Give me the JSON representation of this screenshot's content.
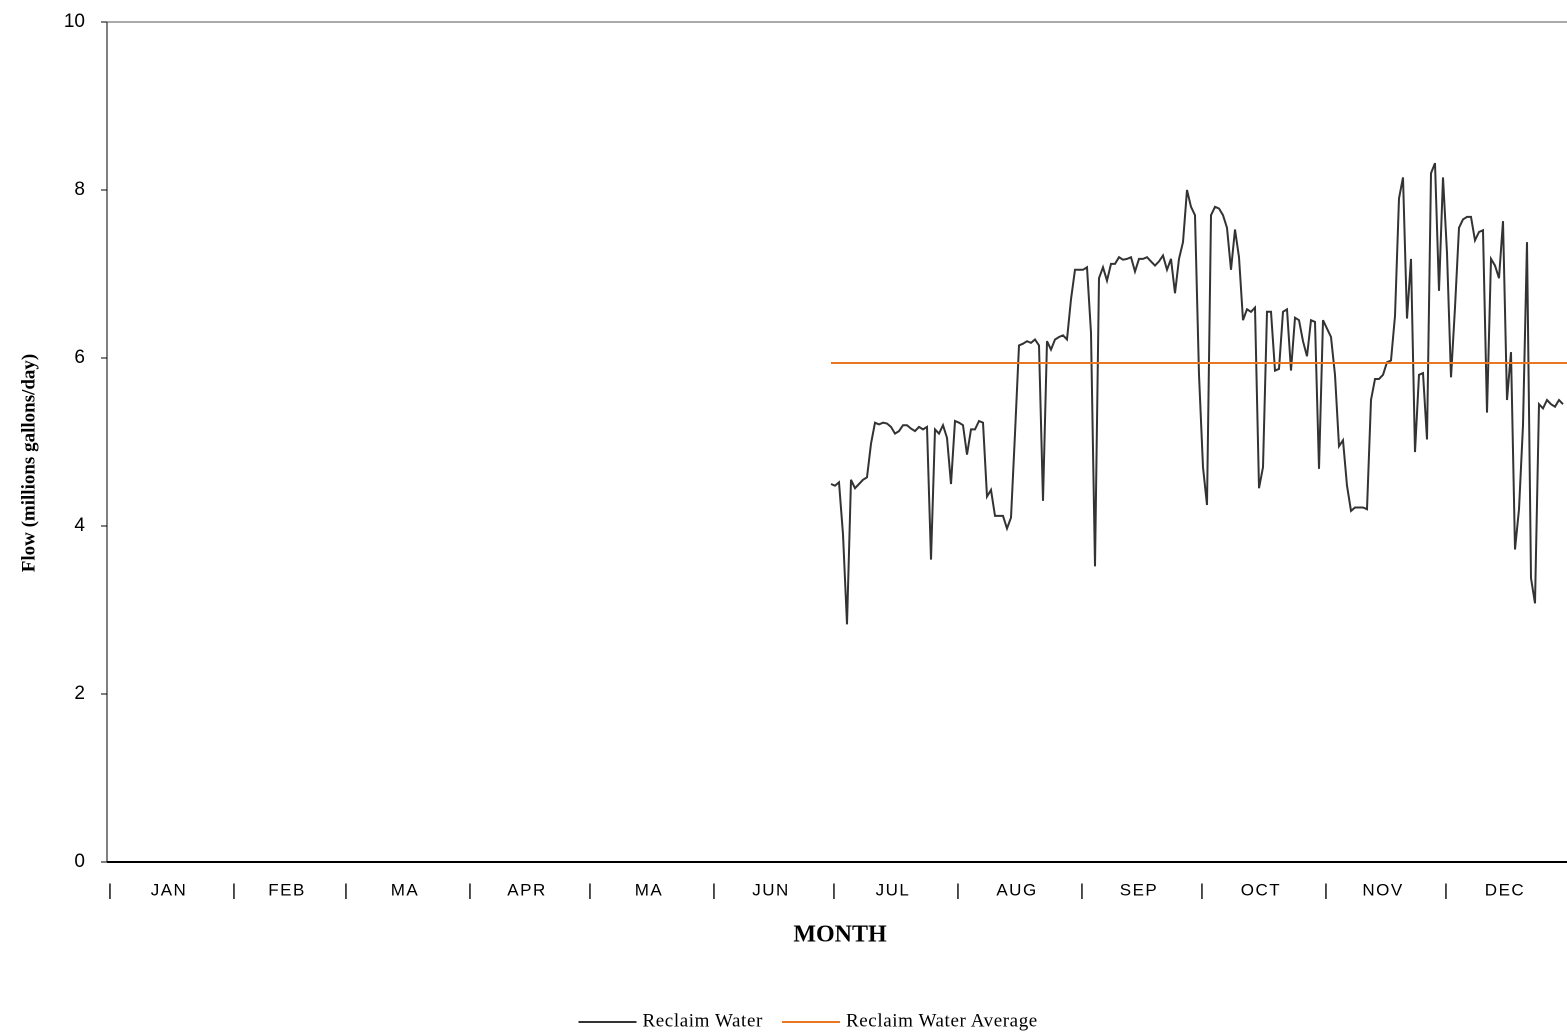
{
  "chart_data": {
    "type": "line",
    "xlabel": "MONTH",
    "ylabel": "Flow (millions gallons/day)",
    "xlim": [
      1,
      366
    ],
    "xticks": [
      {
        "value": 1,
        "label": "|"
      },
      {
        "value": 32,
        "label": "|"
      },
      {
        "value": 60,
        "label": "|"
      },
      {
        "value": 91,
        "label": "|"
      },
      {
        "value": 121,
        "label": "|"
      },
      {
        "value": 152,
        "label": "|"
      },
      {
        "value": 182,
        "label": "|"
      },
      {
        "value": 213,
        "label": "|"
      },
      {
        "value": 244,
        "label": "|"
      },
      {
        "value": 274,
        "label": "|"
      },
      {
        "value": 305,
        "label": "|"
      },
      {
        "value": 335,
        "label": "|"
      }
    ],
    "categories": [
      "JAN",
      "FEB",
      "MA",
      "APR",
      "MA",
      "JUN",
      "JUL",
      "AUG",
      "SEP",
      "OCT",
      "NOV",
      "DEC"
    ],
    "ylim": [
      0,
      10
    ],
    "yticks": [
      0,
      2,
      4,
      6,
      8,
      10
    ],
    "grid": false,
    "legend": "bottom",
    "series": [
      {
        "name": "Reclaim Water",
        "color": "#333333",
        "x": [
          182,
          183,
          184,
          185,
          186,
          187,
          188,
          189,
          190,
          191,
          192,
          193,
          194,
          195,
          196,
          197,
          198,
          199,
          200,
          201,
          202,
          203,
          204,
          205,
          206,
          207,
          208,
          209,
          210,
          211,
          212,
          213,
          214,
          215,
          216,
          217,
          218,
          219,
          220,
          221,
          222,
          223,
          224,
          225,
          226,
          227,
          228,
          229,
          230,
          231,
          232,
          233,
          234,
          235,
          236,
          237,
          238,
          239,
          240,
          241,
          242,
          243,
          244,
          245,
          246,
          247,
          248,
          249,
          250,
          251,
          252,
          253,
          254,
          255,
          256,
          257,
          258,
          259,
          260,
          261,
          262,
          263,
          264,
          265,
          266,
          267,
          268,
          269,
          270,
          271,
          272,
          273,
          274,
          275,
          276,
          277,
          278,
          279,
          280,
          281,
          282,
          283,
          284,
          285,
          286,
          287,
          288,
          289,
          290,
          291,
          292,
          293,
          294,
          295,
          296,
          297,
          298,
          299,
          300,
          301,
          302,
          303,
          304,
          305,
          306,
          307,
          308,
          309,
          310,
          311,
          312,
          313,
          314,
          315,
          316,
          317,
          318,
          319,
          320,
          321,
          322,
          323,
          324,
          325,
          326,
          327,
          328,
          329,
          330,
          331,
          332,
          333,
          334,
          335,
          336,
          337,
          338,
          339,
          340,
          341,
          342,
          343,
          344,
          345,
          346,
          347,
          348,
          349,
          350,
          351,
          352,
          353,
          354,
          355,
          356,
          357,
          358,
          359,
          360,
          361,
          362,
          363,
          364,
          365
        ],
        "values": [
          4.5,
          4.48,
          4.52,
          3.9,
          2.83,
          4.55,
          4.45,
          4.5,
          4.55,
          4.58,
          4.98,
          5.23,
          5.21,
          5.23,
          5.22,
          5.18,
          5.1,
          5.13,
          5.2,
          5.2,
          5.16,
          5.13,
          5.18,
          5.15,
          5.18,
          3.6,
          5.15,
          5.1,
          5.2,
          5.05,
          4.5,
          5.25,
          5.23,
          5.2,
          4.85,
          5.15,
          5.15,
          5.25,
          5.23,
          4.35,
          4.43,
          4.12,
          4.12,
          4.12,
          3.97,
          4.1,
          5.1,
          6.15,
          6.17,
          6.2,
          6.18,
          6.22,
          6.15,
          4.3,
          6.2,
          6.1,
          6.22,
          6.25,
          6.27,
          6.22,
          6.7,
          7.05,
          7.05,
          7.05,
          7.08,
          6.3,
          3.52,
          6.95,
          7.08,
          6.92,
          7.12,
          7.12,
          7.2,
          7.17,
          7.18,
          7.2,
          7.03,
          7.18,
          7.18,
          7.2,
          7.15,
          7.1,
          7.15,
          7.22,
          7.05,
          7.18,
          6.77,
          7.18,
          7.38,
          8.0,
          7.8,
          7.7,
          5.8,
          4.7,
          4.25,
          7.7,
          7.8,
          7.78,
          7.7,
          7.55,
          7.05,
          7.53,
          7.2,
          6.45,
          6.58,
          6.55,
          6.6,
          4.45,
          4.7,
          6.55,
          6.55,
          5.85,
          5.87,
          6.55,
          6.58,
          5.85,
          6.48,
          6.45,
          6.2,
          6.02,
          6.45,
          6.43,
          4.68,
          6.45,
          6.35,
          6.25,
          5.8,
          4.95,
          5.02,
          4.48,
          4.18,
          4.22,
          4.22,
          4.22,
          4.2,
          5.5,
          5.75,
          5.75,
          5.8,
          5.95,
          5.97,
          6.5,
          7.9,
          8.15,
          6.47,
          7.18,
          4.88,
          5.8,
          5.82,
          5.03,
          8.2,
          8.32,
          6.8,
          8.15,
          7.25,
          5.77,
          6.6,
          7.55,
          7.65,
          7.68,
          7.68,
          7.4,
          7.5,
          7.52,
          5.35,
          7.18,
          7.1,
          6.95,
          7.63,
          5.5,
          6.07,
          3.72,
          4.2,
          5.2,
          7.38,
          3.38,
          3.08,
          5.45,
          5.4,
          5.5,
          5.45,
          5.42,
          5.5,
          5.45
        ]
      },
      {
        "name": "Reclaim Water Average",
        "color": "#e87722",
        "x": [
          182,
          366
        ],
        "values": [
          5.94,
          5.94
        ]
      }
    ]
  }
}
